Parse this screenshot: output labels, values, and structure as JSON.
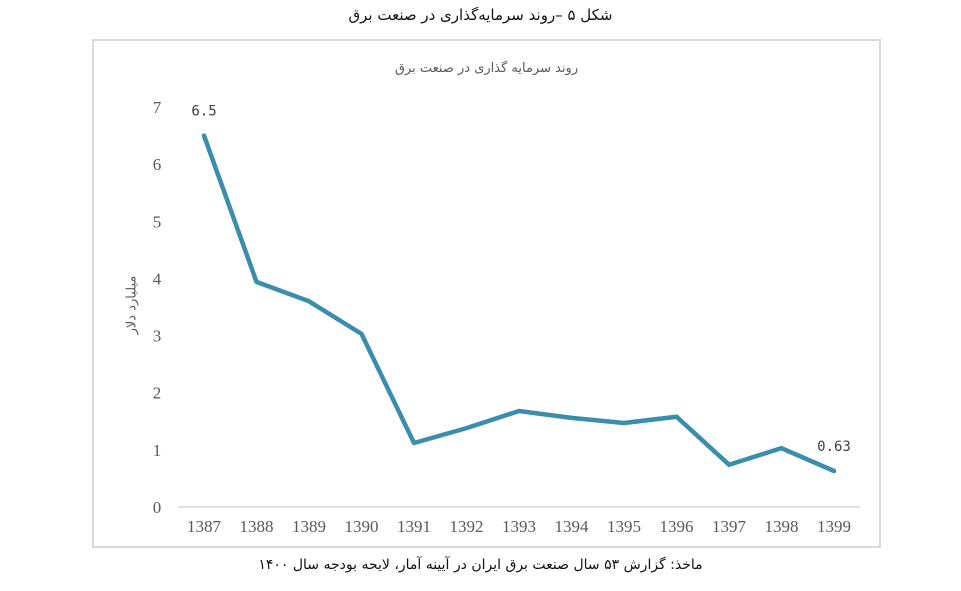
{
  "figure": {
    "caption": "شکل ۵ –روند سرمایه‌گذاری در صنعت برق",
    "source": "ماخذ: گزارش ۵۳ سال صنعت برق ایران در آیینه آمار، لایحه بودجه سال ۱۴۰۰"
  },
  "chart_data": {
    "type": "line",
    "title": "روند سرمایه گذاری در صنعت برق",
    "xlabel": "",
    "ylabel": "میلیارد دلار",
    "categories": [
      "1387",
      "1388",
      "1389",
      "1390",
      "1391",
      "1392",
      "1393",
      "1394",
      "1395",
      "1396",
      "1397",
      "1398",
      "1399"
    ],
    "series": [
      {
        "name": "سرمایه گذاری",
        "color": "#3b8eab",
        "values": [
          6.5,
          3.94,
          3.6,
          3.03,
          1.12,
          1.38,
          1.68,
          1.56,
          1.47,
          1.58,
          0.74,
          1.03,
          0.63
        ]
      }
    ],
    "data_labels": [
      {
        "category": "1387",
        "text": "6.5"
      },
      {
        "category": "1399",
        "text": "0.63"
      }
    ],
    "yticks": [
      "0",
      "1",
      "2",
      "3",
      "4",
      "5",
      "6",
      "7"
    ],
    "ylim": [
      0,
      7
    ],
    "grid": false,
    "legend": "none"
  }
}
